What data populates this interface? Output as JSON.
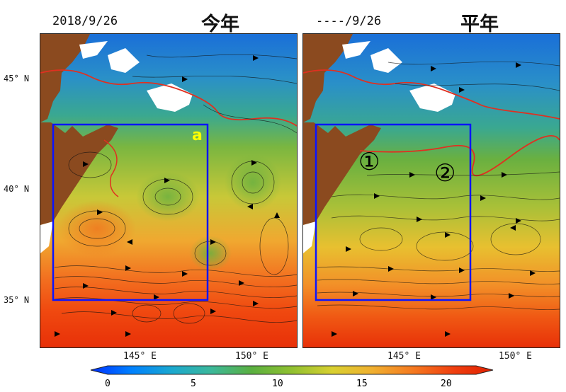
{
  "panels": [
    {
      "date": "2018/9/26",
      "title": "今年",
      "annotation": "a"
    },
    {
      "date": "----/9/26",
      "title": "平年",
      "markers": [
        "①",
        "②"
      ]
    }
  ],
  "lat_labels": [
    "45° N",
    "40° N",
    "35° N"
  ],
  "lon_labels": [
    "145° E",
    "150° E"
  ],
  "colorbar": {
    "ticks": [
      "0",
      "5",
      "10",
      "15",
      "20"
    ],
    "min": 0,
    "max": 22,
    "colors": [
      "#0030ff",
      "#0080ff",
      "#1aa8d0",
      "#3cb89a",
      "#5ab040",
      "#90c030",
      "#d8d030",
      "#f0b030",
      "#f57a20",
      "#f04010",
      "#e02000"
    ]
  },
  "colors": {
    "land": "#8b4a1f",
    "box": "#0a14ff",
    "contour": "#e03020"
  }
}
